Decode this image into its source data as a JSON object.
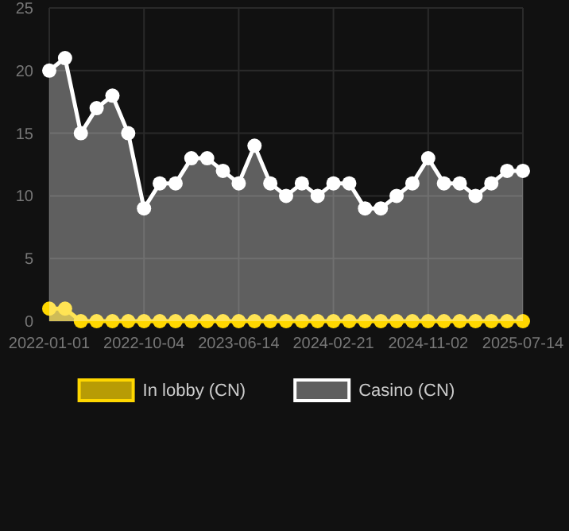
{
  "chart_data": {
    "type": "area",
    "categories": [
      "2022-01-01",
      null,
      null,
      null,
      null,
      null,
      "2022-10-04",
      null,
      null,
      null,
      null,
      null,
      "2023-06-14",
      null,
      null,
      null,
      null,
      null,
      "2024-02-21",
      null,
      null,
      null,
      null,
      null,
      "2024-11-02",
      null,
      null,
      null,
      null,
      null,
      "2025-07-14"
    ],
    "series": [
      {
        "name": "In lobby (CN)",
        "color": "#ffd700",
        "values": [
          1,
          1,
          0,
          0,
          0,
          0,
          0,
          0,
          0,
          0,
          0,
          0,
          0,
          0,
          0,
          0,
          0,
          0,
          0,
          0,
          0,
          0,
          0,
          0,
          0,
          0,
          0,
          0,
          0,
          0,
          0
        ]
      },
      {
        "name": "Casino (CN)",
        "color": "#ffffff",
        "values": [
          20,
          21,
          15,
          17,
          18,
          15,
          9,
          11,
          11,
          13,
          13,
          12,
          11,
          14,
          11,
          10,
          11,
          10,
          11,
          11,
          9,
          9,
          10,
          11,
          13,
          11,
          11,
          10,
          11,
          12,
          12
        ]
      }
    ],
    "ylim": [
      0,
      25
    ],
    "yticks": [
      0,
      5,
      10,
      15,
      20,
      25
    ],
    "grid": true,
    "legend": "bottom",
    "marker": "circle"
  }
}
